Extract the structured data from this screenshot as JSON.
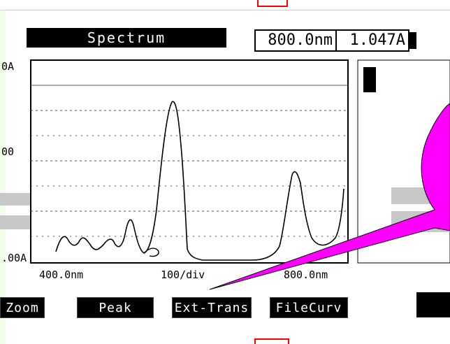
{
  "title_bar": {
    "label": "Spectrum"
  },
  "readout": {
    "wavelength": "800.0nm",
    "absorbance": "1.047A"
  },
  "y_axis": {
    "top": "0A",
    "mid": "00",
    "bottom": ".00A"
  },
  "x_axis": {
    "left": "400.0nm",
    "center": "100/div",
    "right": "800.0nm"
  },
  "soft_keys": [
    "Zoom",
    "Peak",
    "Ext-Trans",
    "FileCurv"
  ],
  "colors": {
    "callout": "#ff00ff",
    "screen_bg": "#ffffff",
    "ink": "#000000",
    "left_tint": "#f0ffe8",
    "marker": "#ff0000"
  }
}
